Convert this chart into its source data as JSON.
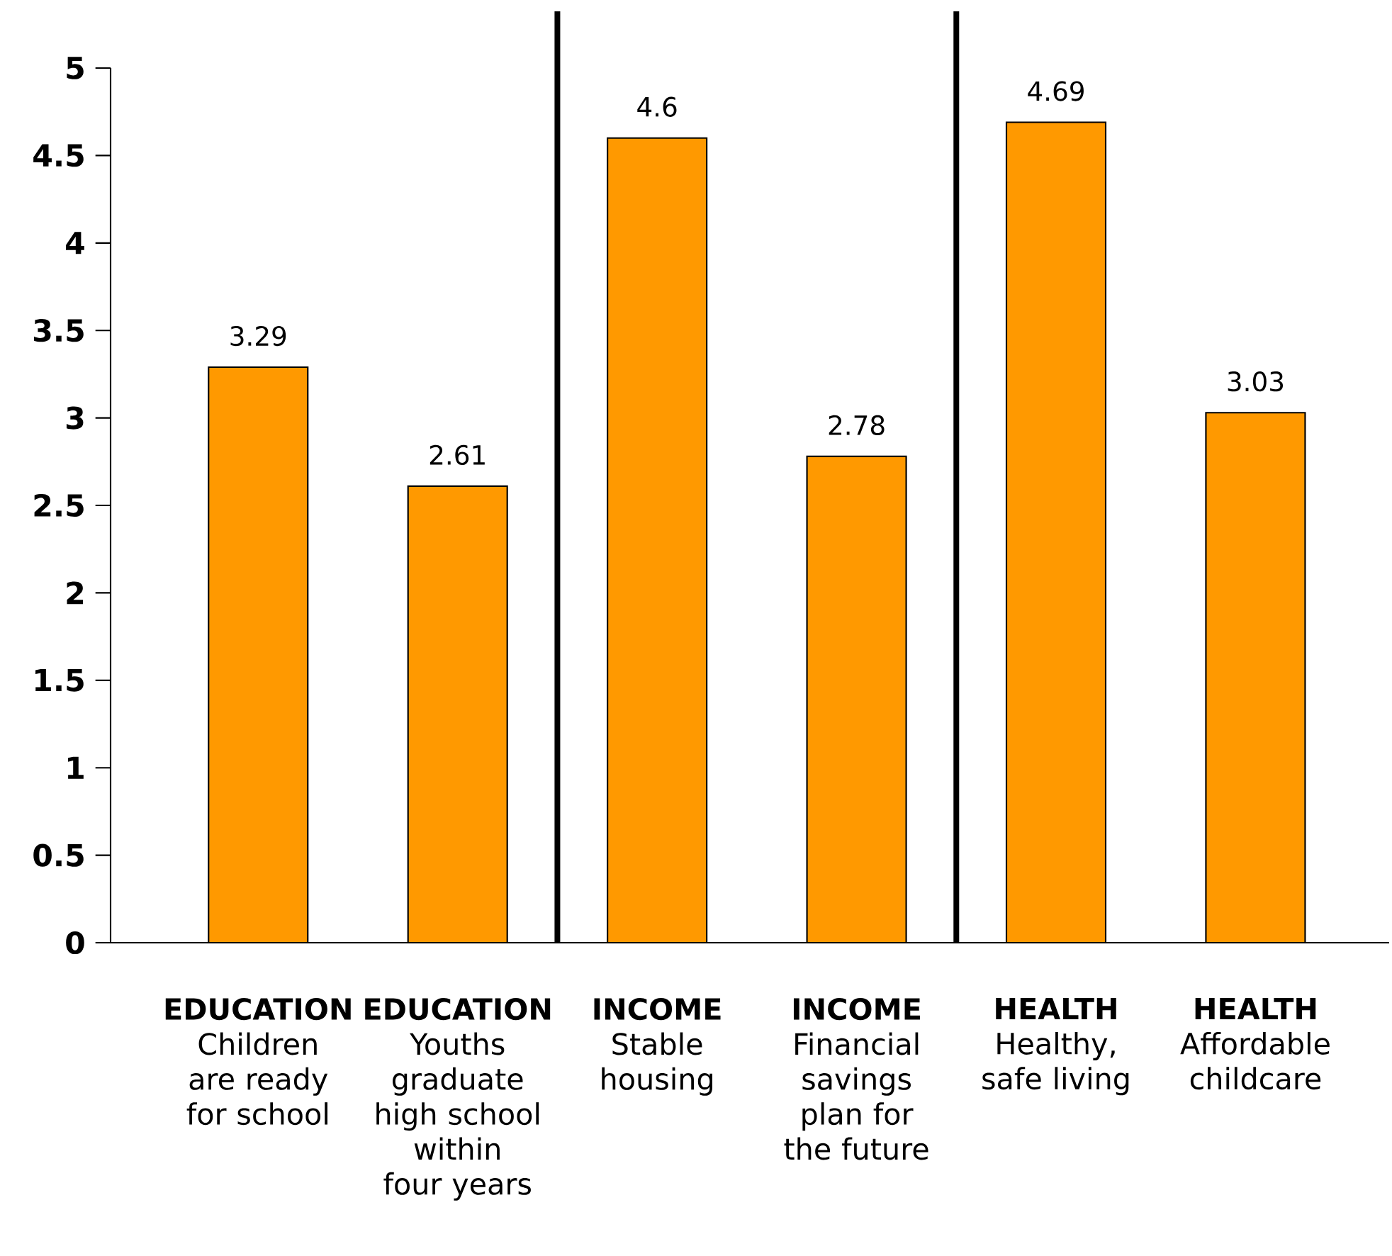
{
  "chart_data": {
    "type": "bar",
    "categories": [
      "**EDUCATION** Children are ready for school",
      "**EDUCATION** Youths graduate high school within four years",
      "**INCOME** Stable housing",
      "**INCOME** Financial savings plan for the future",
      "**HEALTH** Healthy, safe living",
      "**HEALTH** Affordable childcare"
    ],
    "values": [
      3.29,
      2.61,
      4.6,
      2.78,
      4.69,
      3.03
    ],
    "color": "#ff9900",
    "ylim": [
      0,
      5
    ],
    "yticks": [
      0,
      0.5,
      1,
      1.5,
      2,
      2.5,
      3,
      3.5,
      4,
      4.5,
      5
    ],
    "data_labels": true,
    "grid": false
  }
}
